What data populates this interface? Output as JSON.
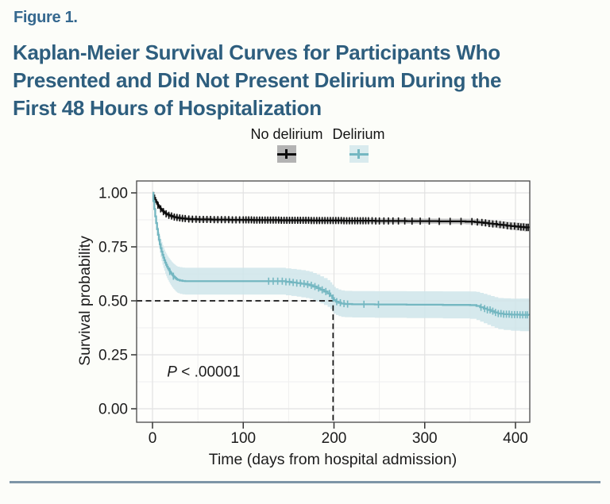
{
  "header": {
    "figure_label": "Figure 1.",
    "title_lines": [
      "Kaplan-Meier Survival Curves for Participants Who",
      "Presented and Did Not Present Delirium During the",
      "First 48 Hours of Hospitalization"
    ]
  },
  "legend": {
    "entries": [
      {
        "label": "No delirium",
        "swatch_bg": "#b3b3b3",
        "mark_color": "#0d0d0d"
      },
      {
        "label": "Delirium",
        "swatch_bg": "#d9ebee",
        "mark_color": "#74b7c1"
      }
    ]
  },
  "colors": {
    "figure_label": "#35688f",
    "title": "#2e5e7e",
    "text": "#1c1c1c",
    "footer_rule": "#7d95a7",
    "panel_border": "#474747",
    "grid_major": "#e2e2e2",
    "grid_minor": "#efefef",
    "guide_dash": "#141414",
    "no_delirium_line": "#0d0d0d",
    "no_delirium_band": "#bcbcbc",
    "delirium_line": "#74b7c1",
    "delirium_band": "#cfe5ea"
  },
  "chart_data": {
    "type": "line",
    "subtype": "kaplan-meier-step",
    "title": "",
    "xlabel": "Time (days from hospital admission)",
    "ylabel": "Survival probability",
    "xlim": [
      -17.5,
      416
    ],
    "ylim": [
      -0.0625,
      1.055
    ],
    "xticks": [
      {
        "v": 0,
        "label": "0"
      },
      {
        "v": 100,
        "label": "100"
      },
      {
        "v": 200,
        "label": "200"
      },
      {
        "v": 300,
        "label": "300"
      },
      {
        "v": 400,
        "label": "400"
      }
    ],
    "yticks": [
      {
        "v": 0.0,
        "label": "0.00"
      },
      {
        "v": 0.25,
        "label": "0.25"
      },
      {
        "v": 0.5,
        "label": "0.50"
      },
      {
        "v": 0.75,
        "label": "0.75"
      },
      {
        "v": 1.0,
        "label": "1.00"
      }
    ],
    "grid": {
      "major": true,
      "minor": true,
      "x_minor": [
        50,
        150,
        250,
        350
      ],
      "y_minor": [
        0.125,
        0.375,
        0.625,
        0.875
      ]
    },
    "annotation": {
      "text_italic": "P",
      "text_rest": " < .00001",
      "x_day": 16,
      "y_s": 0.173
    },
    "median_guides": {
      "x_day": 199,
      "y_s": 0.5
    },
    "legend_position": "top",
    "series": [
      {
        "name": "No delirium",
        "color": "#0d0d0d",
        "band_color": "#bcbcbc",
        "points": [
          [
            0,
            1.0
          ],
          [
            1,
            0.988
          ],
          [
            2,
            0.977
          ],
          [
            3,
            0.967
          ],
          [
            4,
            0.958
          ],
          [
            5,
            0.95
          ],
          [
            6,
            0.943
          ],
          [
            7,
            0.937
          ],
          [
            8,
            0.931
          ],
          [
            9,
            0.926
          ],
          [
            10,
            0.921
          ],
          [
            11,
            0.917
          ],
          [
            12,
            0.913
          ],
          [
            13,
            0.909
          ],
          [
            14,
            0.906
          ],
          [
            15,
            0.903
          ],
          [
            16,
            0.9
          ],
          [
            18,
            0.896
          ],
          [
            20,
            0.893
          ],
          [
            22,
            0.89
          ],
          [
            24,
            0.888
          ],
          [
            26,
            0.886
          ],
          [
            28,
            0.884
          ],
          [
            31,
            0.882
          ],
          [
            34,
            0.881
          ],
          [
            38,
            0.879
          ],
          [
            42,
            0.878
          ],
          [
            50,
            0.877
          ],
          [
            65,
            0.876
          ],
          [
            85,
            0.875
          ],
          [
            110,
            0.874
          ],
          [
            140,
            0.873
          ],
          [
            175,
            0.872
          ],
          [
            210,
            0.871
          ],
          [
            245,
            0.87
          ],
          [
            280,
            0.869
          ],
          [
            315,
            0.868
          ],
          [
            345,
            0.867
          ],
          [
            355,
            0.865
          ],
          [
            360,
            0.863
          ],
          [
            365,
            0.861
          ],
          [
            370,
            0.858
          ],
          [
            375,
            0.856
          ],
          [
            380,
            0.853
          ],
          [
            385,
            0.851
          ],
          [
            390,
            0.848
          ],
          [
            395,
            0.846
          ],
          [
            400,
            0.844
          ],
          [
            405,
            0.842
          ],
          [
            410,
            0.84
          ],
          [
            415,
            0.838
          ]
        ],
        "band_halfwidth": [
          [
            0,
            0.003
          ],
          [
            5,
            0.007
          ],
          [
            10,
            0.009
          ],
          [
            20,
            0.011
          ],
          [
            40,
            0.012
          ],
          [
            300,
            0.012
          ],
          [
            350,
            0.013
          ],
          [
            380,
            0.016
          ],
          [
            415,
            0.02
          ]
        ],
        "censor_days": [
          6,
          9,
          12,
          15,
          18,
          21,
          24,
          27,
          30,
          33,
          36,
          40,
          44,
          48,
          52,
          56,
          60,
          64,
          68,
          72,
          76,
          80,
          84,
          88,
          92,
          96,
          100,
          103,
          106,
          109,
          112,
          115,
          118,
          121,
          124,
          127,
          130,
          133,
          136,
          139,
          142,
          145,
          148,
          151,
          154,
          157,
          160,
          163,
          166,
          169,
          172,
          175,
          178,
          181,
          184,
          187,
          190,
          193,
          196,
          199,
          202,
          205,
          208,
          211,
          214,
          217,
          220,
          223,
          226,
          229,
          232,
          235,
          238,
          242,
          246,
          250,
          255,
          260,
          265,
          271,
          278,
          286,
          295,
          305,
          316,
          328,
          340,
          352,
          358,
          363,
          367,
          371,
          375,
          379,
          383,
          387,
          391,
          395,
          399,
          403,
          406,
          409,
          412,
          414
        ]
      },
      {
        "name": "Delirium",
        "color": "#74b7c1",
        "band_color": "#cfe5ea",
        "points": [
          [
            0,
            1.0
          ],
          [
            1,
            0.962
          ],
          [
            2,
            0.925
          ],
          [
            3,
            0.891
          ],
          [
            4,
            0.86
          ],
          [
            5,
            0.832
          ],
          [
            6,
            0.806
          ],
          [
            7,
            0.783
          ],
          [
            8,
            0.762
          ],
          [
            9,
            0.744
          ],
          [
            10,
            0.728
          ],
          [
            11,
            0.713
          ],
          [
            12,
            0.7
          ],
          [
            13,
            0.688
          ],
          [
            14,
            0.677
          ],
          [
            15,
            0.667
          ],
          [
            16,
            0.658
          ],
          [
            17,
            0.65
          ],
          [
            18,
            0.643
          ],
          [
            19,
            0.636
          ],
          [
            20,
            0.63
          ],
          [
            21,
            0.624
          ],
          [
            22,
            0.619
          ],
          [
            23,
            0.614
          ],
          [
            24,
            0.61
          ],
          [
            25,
            0.606
          ],
          [
            26,
            0.602
          ],
          [
            27,
            0.599
          ],
          [
            28,
            0.597
          ],
          [
            30,
            0.594
          ],
          [
            33,
            0.592
          ],
          [
            36,
            0.591
          ],
          [
            140,
            0.591
          ],
          [
            147,
            0.588
          ],
          [
            153,
            0.585
          ],
          [
            159,
            0.582
          ],
          [
            164,
            0.579
          ],
          [
            169,
            0.576
          ],
          [
            173,
            0.572
          ],
          [
            177,
            0.566
          ],
          [
            181,
            0.559
          ],
          [
            185,
            0.551
          ],
          [
            189,
            0.543
          ],
          [
            193,
            0.534
          ],
          [
            196,
            0.524
          ],
          [
            198,
            0.513
          ],
          [
            200,
            0.503
          ],
          [
            202,
            0.496
          ],
          [
            205,
            0.491
          ],
          [
            208,
            0.487
          ],
          [
            212,
            0.485
          ],
          [
            220,
            0.484
          ],
          [
            245,
            0.483
          ],
          [
            280,
            0.482
          ],
          [
            320,
            0.481
          ],
          [
            350,
            0.48
          ],
          [
            357,
            0.476
          ],
          [
            361,
            0.47
          ],
          [
            365,
            0.464
          ],
          [
            369,
            0.458
          ],
          [
            373,
            0.452
          ],
          [
            377,
            0.446
          ],
          [
            381,
            0.441
          ],
          [
            387,
            0.438
          ],
          [
            395,
            0.436
          ],
          [
            405,
            0.435
          ],
          [
            415,
            0.434
          ]
        ],
        "band_halfwidth": [
          [
            0,
            0.006
          ],
          [
            3,
            0.022
          ],
          [
            6,
            0.034
          ],
          [
            10,
            0.044
          ],
          [
            15,
            0.052
          ],
          [
            20,
            0.057
          ],
          [
            25,
            0.06
          ],
          [
            30,
            0.062
          ],
          [
            140,
            0.062
          ],
          [
            170,
            0.063
          ],
          [
            200,
            0.062
          ],
          [
            212,
            0.061
          ],
          [
            350,
            0.063
          ],
          [
            365,
            0.068
          ],
          [
            385,
            0.073
          ],
          [
            415,
            0.077
          ]
        ],
        "censor_days": [
          19,
          23,
          128,
          133,
          138,
          143,
          147,
          151,
          155,
          159,
          163,
          167,
          171,
          175,
          179,
          183,
          187,
          191,
          195,
          199,
          203,
          207,
          211,
          215,
          233,
          249,
          362,
          366,
          369,
          372,
          375,
          378,
          381,
          384,
          387,
          390,
          393,
          396,
          399,
          402,
          405,
          408,
          411,
          413
        ]
      }
    ]
  }
}
